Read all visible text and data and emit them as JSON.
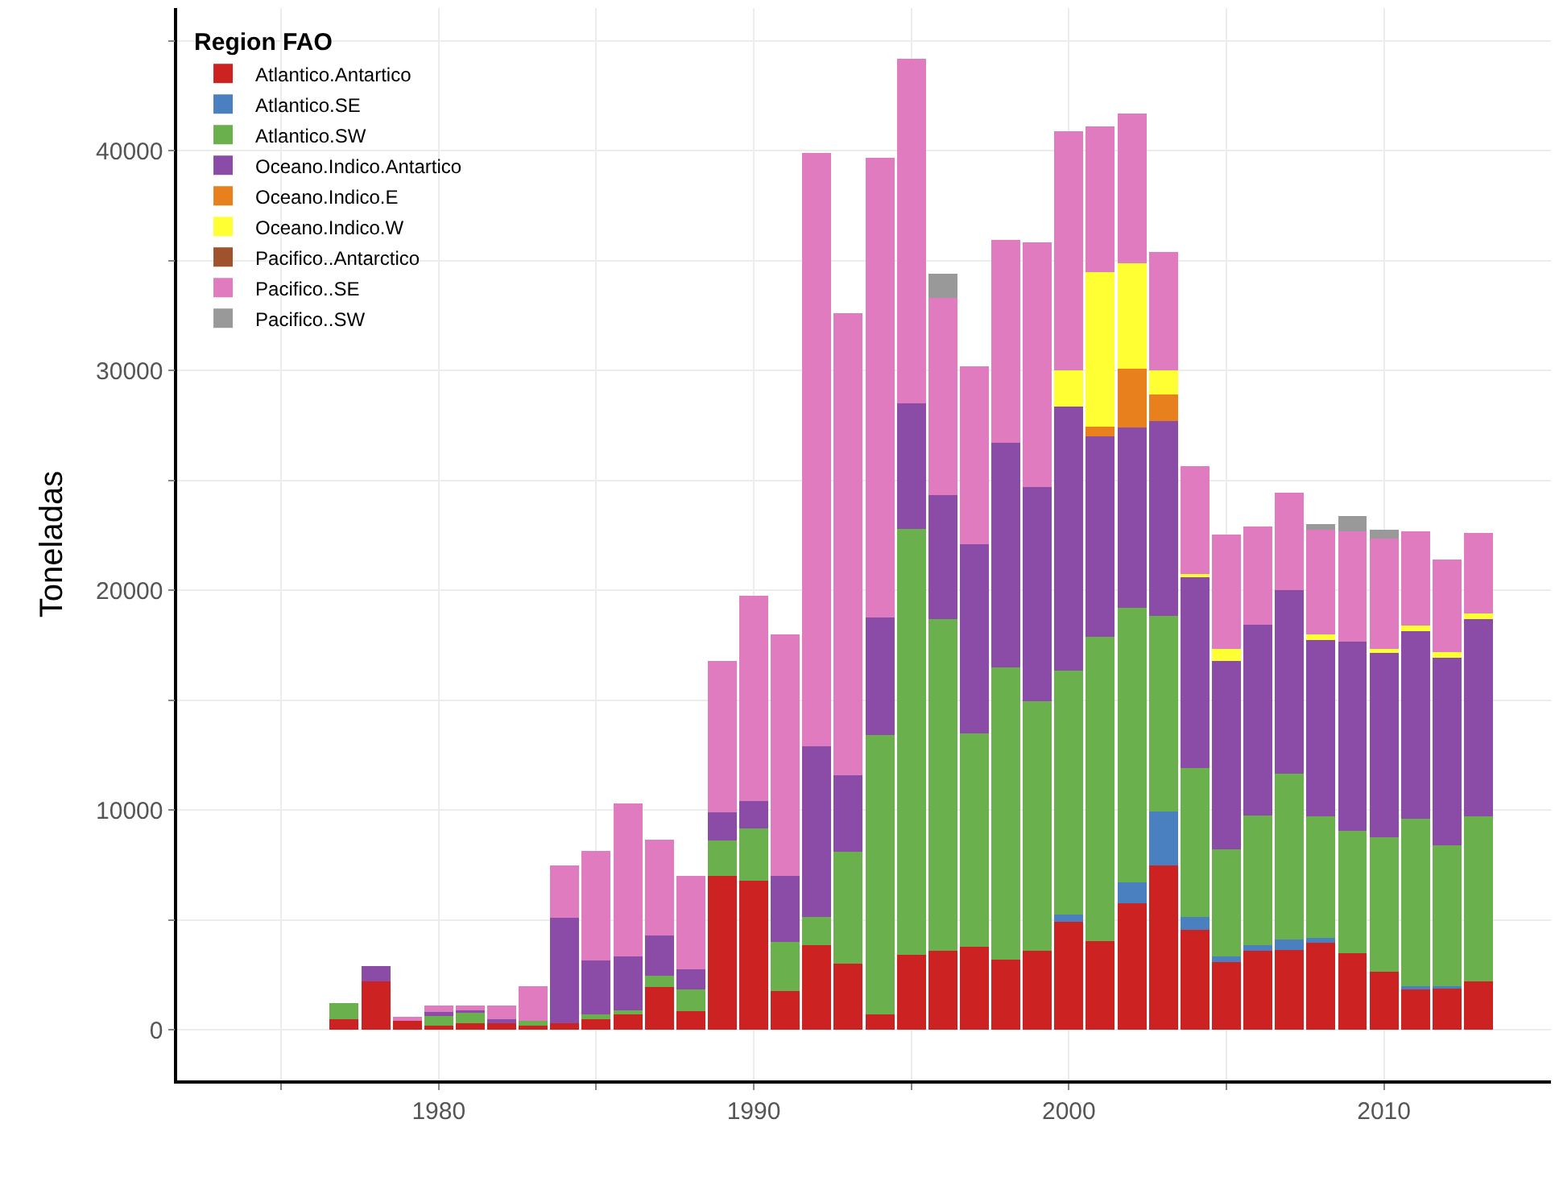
{
  "chart_data": {
    "type": "bar",
    "stacked": true,
    "ylabel": "Toneladas",
    "legend_title": "Region FAO",
    "legend": "top left",
    "grid": true,
    "x": [
      1977,
      1978,
      1979,
      1980,
      1981,
      1982,
      1983,
      1984,
      1985,
      1986,
      1987,
      1988,
      1989,
      1990,
      1991,
      1992,
      1993,
      1994,
      1995,
      1996,
      1997,
      1998,
      1999,
      2000,
      2001,
      2002,
      2003,
      2004,
      2005,
      2006,
      2007,
      2008,
      2009,
      2010,
      2011,
      2012,
      2013
    ],
    "xlim": [
      1971.7,
      2015.3
    ],
    "xticks": [
      {
        "value": 1975,
        "label": null
      },
      1980,
      {
        "value": 1985,
        "label": null
      },
      1990,
      {
        "value": 1995,
        "label": null
      },
      2000,
      {
        "value": 2005,
        "label": null
      },
      2010
    ],
    "ylim": [
      -2300,
      46500
    ],
    "yticks": [
      0,
      {
        "value": 5000,
        "label": null
      },
      10000,
      {
        "value": 15000,
        "label": null
      },
      20000,
      {
        "value": 25000,
        "label": null
      },
      30000,
      {
        "value": 35000,
        "label": null
      },
      40000,
      {
        "value": 45000,
        "label": null
      }
    ],
    "series": [
      {
        "name": "Atlantico.Antartico",
        "color": "#cc2222",
        "values": [
          500,
          2200,
          400,
          200,
          300,
          300,
          200,
          300,
          500,
          700,
          1950,
          850,
          7000,
          6800,
          1750,
          3850,
          3000,
          700,
          3400,
          3600,
          3800,
          3200,
          3600,
          4900,
          4050,
          5750,
          7500,
          4550,
          3100,
          3600,
          3650,
          3950,
          3500,
          2650,
          1850,
          1900,
          2200
        ]
      },
      {
        "name": "Atlantico.SE",
        "color": "#4a7fc0",
        "values": [
          null,
          null,
          null,
          null,
          null,
          null,
          null,
          null,
          null,
          null,
          null,
          null,
          null,
          null,
          null,
          null,
          null,
          null,
          null,
          null,
          null,
          null,
          null,
          350,
          null,
          950,
          2450,
          600,
          250,
          250,
          450,
          250,
          null,
          null,
          150,
          100,
          null
        ]
      },
      {
        "name": "Atlantico.SW",
        "color": "#6ab04c",
        "values": [
          700,
          null,
          null,
          500,
          500,
          null,
          200,
          null,
          200,
          200,
          500,
          1000,
          1600,
          2350,
          2250,
          1300,
          5100,
          12700,
          19400,
          15100,
          9700,
          13300,
          11350,
          11100,
          13850,
          12500,
          8900,
          6750,
          4850,
          5900,
          7550,
          5500,
          5550,
          6100,
          7600,
          6400,
          7500
        ]
      },
      {
        "name": "Oceano.Indico.Antartico",
        "color": "#8a4ca6",
        "values": [
          null,
          700,
          null,
          100,
          100,
          200,
          null,
          4800,
          2450,
          2450,
          1850,
          900,
          1300,
          1250,
          3000,
          7750,
          3500,
          5350,
          5700,
          5650,
          8600,
          10200,
          9750,
          12000,
          9100,
          8200,
          8850,
          8700,
          8600,
          8700,
          8350,
          8050,
          8600,
          8400,
          8550,
          8550,
          9000
        ]
      },
      {
        "name": "Oceano.Indico.E",
        "color": "#e8801e",
        "values": [
          null,
          null,
          null,
          null,
          null,
          null,
          null,
          null,
          null,
          null,
          null,
          null,
          null,
          null,
          null,
          null,
          null,
          null,
          null,
          null,
          null,
          null,
          null,
          null,
          450,
          2700,
          1200,
          null,
          null,
          null,
          null,
          null,
          null,
          null,
          null,
          null,
          null
        ]
      },
      {
        "name": "Oceano.Indico.W",
        "color": "#ffff33",
        "values": [
          null,
          null,
          null,
          null,
          null,
          null,
          null,
          null,
          null,
          null,
          null,
          null,
          null,
          null,
          null,
          null,
          null,
          null,
          null,
          null,
          null,
          null,
          null,
          1650,
          7050,
          4800,
          1100,
          150,
          550,
          null,
          null,
          250,
          null,
          200,
          250,
          250,
          250
        ]
      },
      {
        "name": "Pacifico..Antarctico",
        "color": "#a0522d",
        "values": [
          null,
          null,
          null,
          null,
          null,
          null,
          null,
          null,
          null,
          null,
          null,
          null,
          null,
          null,
          null,
          null,
          null,
          null,
          null,
          null,
          null,
          null,
          null,
          null,
          null,
          null,
          null,
          null,
          null,
          null,
          null,
          null,
          null,
          null,
          null,
          null,
          null
        ]
      },
      {
        "name": "Pacifico..SE",
        "color": "#e07bc0",
        "values": [
          null,
          null,
          200,
          300,
          200,
          600,
          1600,
          2400,
          5000,
          6950,
          4350,
          4250,
          6900,
          9350,
          11000,
          27000,
          21000,
          20950,
          15700,
          8950,
          8100,
          9250,
          11150,
          10900,
          6600,
          6800,
          5400,
          4900,
          5200,
          4450,
          4450,
          4750,
          5050,
          5000,
          4300,
          4200,
          3650
        ]
      },
      {
        "name": "Pacifico..SW",
        "color": "#999999",
        "values": [
          null,
          null,
          null,
          null,
          null,
          null,
          null,
          null,
          null,
          null,
          null,
          null,
          null,
          null,
          null,
          null,
          null,
          null,
          null,
          1100,
          null,
          null,
          null,
          null,
          null,
          null,
          null,
          null,
          null,
          null,
          null,
          250,
          700,
          400,
          null,
          null,
          null
        ]
      }
    ]
  }
}
